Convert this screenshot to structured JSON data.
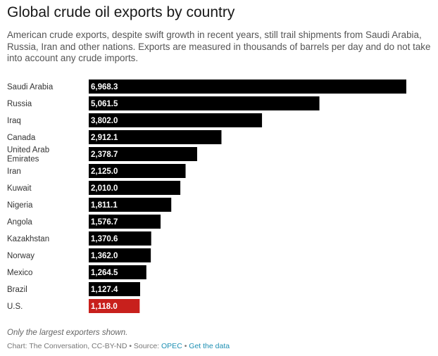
{
  "title": "Global crude oil exports by country",
  "subtitle": "American crude exports, despite swift growth in recent years, still trail shipments from Saudi Arabia, Russia, Iran and other nations. Exports are measured in thousands of barrels per day and do not take into account any crude imports.",
  "note": "Only the largest exporters shown.",
  "footer": {
    "prefix": "Chart: The Conversation, CC-BY-ND • Source: ",
    "source_link": "OPEC",
    "separator": " • ",
    "data_link": "Get the data"
  },
  "colors": {
    "bar": "#000000",
    "highlight": "#c8201c"
  },
  "chart_data": {
    "type": "bar",
    "orientation": "horizontal",
    "categories": [
      "Saudi Arabia",
      "Russia",
      "Iraq",
      "Canada",
      "United Arab Emirates",
      "Iran",
      "Kuwait",
      "Nigeria",
      "Angola",
      "Kazakhstan",
      "Norway",
      "Mexico",
      "Brazil",
      "U.S."
    ],
    "category_lines": [
      [
        "Saudi Arabia"
      ],
      [
        "Russia"
      ],
      [
        "Iraq"
      ],
      [
        "Canada"
      ],
      [
        "United Arab",
        "Emirates"
      ],
      [
        "Iran"
      ],
      [
        "Kuwait"
      ],
      [
        "Nigeria"
      ],
      [
        "Angola"
      ],
      [
        "Kazakhstan"
      ],
      [
        "Norway"
      ],
      [
        "Mexico"
      ],
      [
        "Brazil"
      ],
      [
        "U.S."
      ]
    ],
    "values": [
      6968.3,
      5061.5,
      3802.0,
      2912.1,
      2378.7,
      2125.0,
      2010.0,
      1811.1,
      1576.7,
      1370.6,
      1362.0,
      1264.5,
      1127.4,
      1118.0
    ],
    "value_labels": [
      "6,968.3",
      "5,061.5",
      "3,802.0",
      "2,912.1",
      "2,378.7",
      "2,125.0",
      "2,010.0",
      "1,811.1",
      "1,576.7",
      "1,370.6",
      "1,362.0",
      "1,264.5",
      "1,127.4",
      "1,118.0"
    ],
    "highlight": "U.S.",
    "xlim": [
      0,
      6968.3
    ],
    "grid": false,
    "legend": "none"
  }
}
